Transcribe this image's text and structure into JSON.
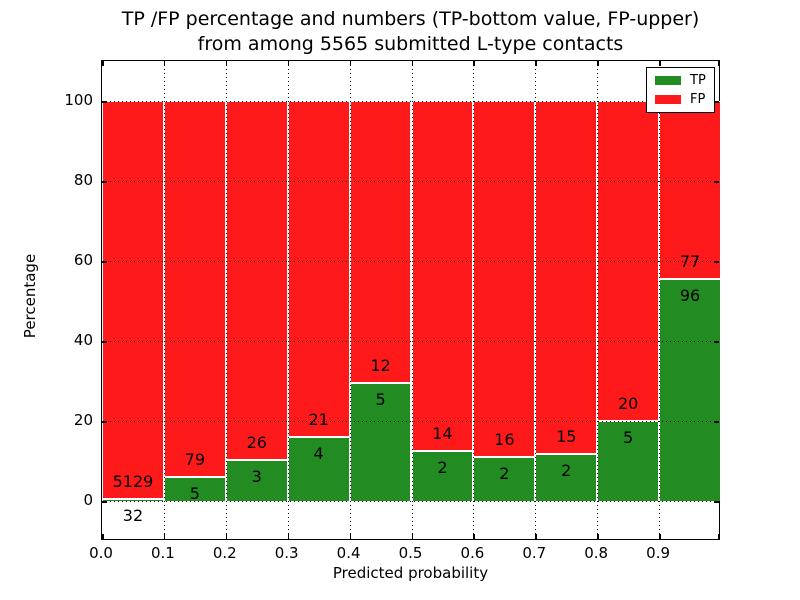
{
  "title": {
    "line1": "TP /FP percentage and numbers (TP-bottom value, FP-upper)",
    "line2": "from among 5565 submitted L-type contacts"
  },
  "axes": {
    "xlabel": "Predicted probability",
    "ylabel": "Percentage",
    "yticks": [
      0,
      20,
      40,
      60,
      80,
      100
    ],
    "xticks": [
      "0.0",
      "0.1",
      "0.2",
      "0.3",
      "0.4",
      "0.5",
      "0.6",
      "0.7",
      "0.8",
      "0.9"
    ]
  },
  "legend": {
    "items": [
      {
        "label": "TP",
        "color": "#228b22"
      },
      {
        "label": "FP",
        "color": "#fe1a1a"
      }
    ]
  },
  "chart_data": {
    "type": "bar",
    "stacked": true,
    "normalized": "each bin stacked to 100%",
    "title": "TP /FP percentage and numbers (TP-bottom value, FP-upper) from among 5565 submitted L-type contacts",
    "xlabel": "Predicted probability",
    "ylabel": "Percentage",
    "total_contacts": 5565,
    "bins": [
      "0.0-0.1",
      "0.1-0.2",
      "0.2-0.3",
      "0.3-0.4",
      "0.4-0.5",
      "0.5-0.6",
      "0.6-0.7",
      "0.7-0.8",
      "0.8-0.9",
      "0.9-1.0"
    ],
    "series": [
      {
        "name": "TP",
        "color": "#228b22",
        "counts": [
          32,
          5,
          3,
          4,
          5,
          2,
          2,
          2,
          5,
          96
        ],
        "percent": [
          0.62,
          5.95,
          10.34,
          16.0,
          29.41,
          12.5,
          11.11,
          11.76,
          20.0,
          55.49
        ]
      },
      {
        "name": "FP",
        "color": "#fe1a1a",
        "counts": [
          5129,
          79,
          26,
          21,
          12,
          14,
          16,
          15,
          20,
          77
        ],
        "percent": [
          99.38,
          94.05,
          89.66,
          84.0,
          70.59,
          87.5,
          88.89,
          88.24,
          80.0,
          44.51
        ]
      }
    ],
    "xlim": [
      0,
      1
    ],
    "ylim": [
      -10,
      110
    ],
    "grid": true,
    "grid_style": "dotted",
    "legend_position": "upper right",
    "bar_label_rule": "FP count printed above TP/FP boundary, TP count printed below boundary"
  }
}
